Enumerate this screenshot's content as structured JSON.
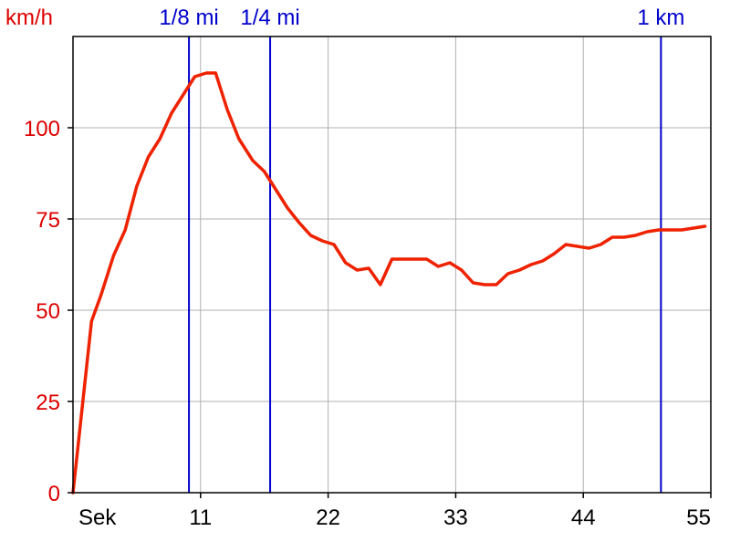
{
  "chart_data": {
    "type": "line",
    "title": "",
    "xlabel": "Sek",
    "ylabel": "km/h",
    "xlim": [
      0,
      55
    ],
    "ylim": [
      0,
      125
    ],
    "x_ticks": [
      11,
      22,
      33,
      44,
      55
    ],
    "y_ticks": [
      0,
      25,
      50,
      75,
      100
    ],
    "grid": true,
    "colors": {
      "line": "#ee2200",
      "y_labels": "#dd0000",
      "markers": "#0000cc",
      "grid": "#b0b0b0",
      "frame": "#000000",
      "x_labels": "#000000"
    },
    "markers": [
      {
        "label": "1/8 mi",
        "x": 10
      },
      {
        "label": "1/4 mi",
        "x": 17
      },
      {
        "label": "1 km",
        "x": 50.7
      }
    ],
    "series": [
      {
        "points": [
          [
            0,
            0
          ],
          [
            1.6,
            47
          ],
          [
            2.4,
            54
          ],
          [
            3.5,
            65
          ],
          [
            4.5,
            72
          ],
          [
            5.5,
            84
          ],
          [
            6.5,
            92
          ],
          [
            7.5,
            97
          ],
          [
            8.5,
            104
          ],
          [
            9.5,
            109
          ],
          [
            10.5,
            114
          ],
          [
            11.5,
            115
          ],
          [
            12.3,
            115
          ],
          [
            13.3,
            105
          ],
          [
            14.3,
            97
          ],
          [
            15.5,
            91
          ],
          [
            16.5,
            88
          ],
          [
            17.5,
            83
          ],
          [
            18.5,
            78
          ],
          [
            19.5,
            74
          ],
          [
            20.5,
            70.5
          ],
          [
            21.5,
            69
          ],
          [
            22.5,
            68
          ],
          [
            23.5,
            63
          ],
          [
            24.5,
            61
          ],
          [
            25.5,
            61.5
          ],
          [
            26.5,
            57
          ],
          [
            27.5,
            64
          ],
          [
            28.5,
            64
          ],
          [
            29.5,
            64
          ],
          [
            30.5,
            64
          ],
          [
            31.5,
            62
          ],
          [
            32.5,
            63
          ],
          [
            33.5,
            61
          ],
          [
            34.5,
            57.5
          ],
          [
            35.5,
            57
          ],
          [
            36.5,
            57
          ],
          [
            37.5,
            60
          ],
          [
            38.5,
            61
          ],
          [
            39.5,
            62.5
          ],
          [
            40.5,
            63.5
          ],
          [
            41.5,
            65.5
          ],
          [
            42.5,
            68
          ],
          [
            43.5,
            67.5
          ],
          [
            44.5,
            67
          ],
          [
            45.5,
            68
          ],
          [
            46.5,
            70
          ],
          [
            47.5,
            70
          ],
          [
            48.5,
            70.5
          ],
          [
            49.5,
            71.5
          ],
          [
            50.5,
            72
          ],
          [
            51.5,
            72
          ],
          [
            52.5,
            72
          ],
          [
            53.5,
            72.5
          ],
          [
            54.5,
            73
          ]
        ]
      }
    ]
  }
}
